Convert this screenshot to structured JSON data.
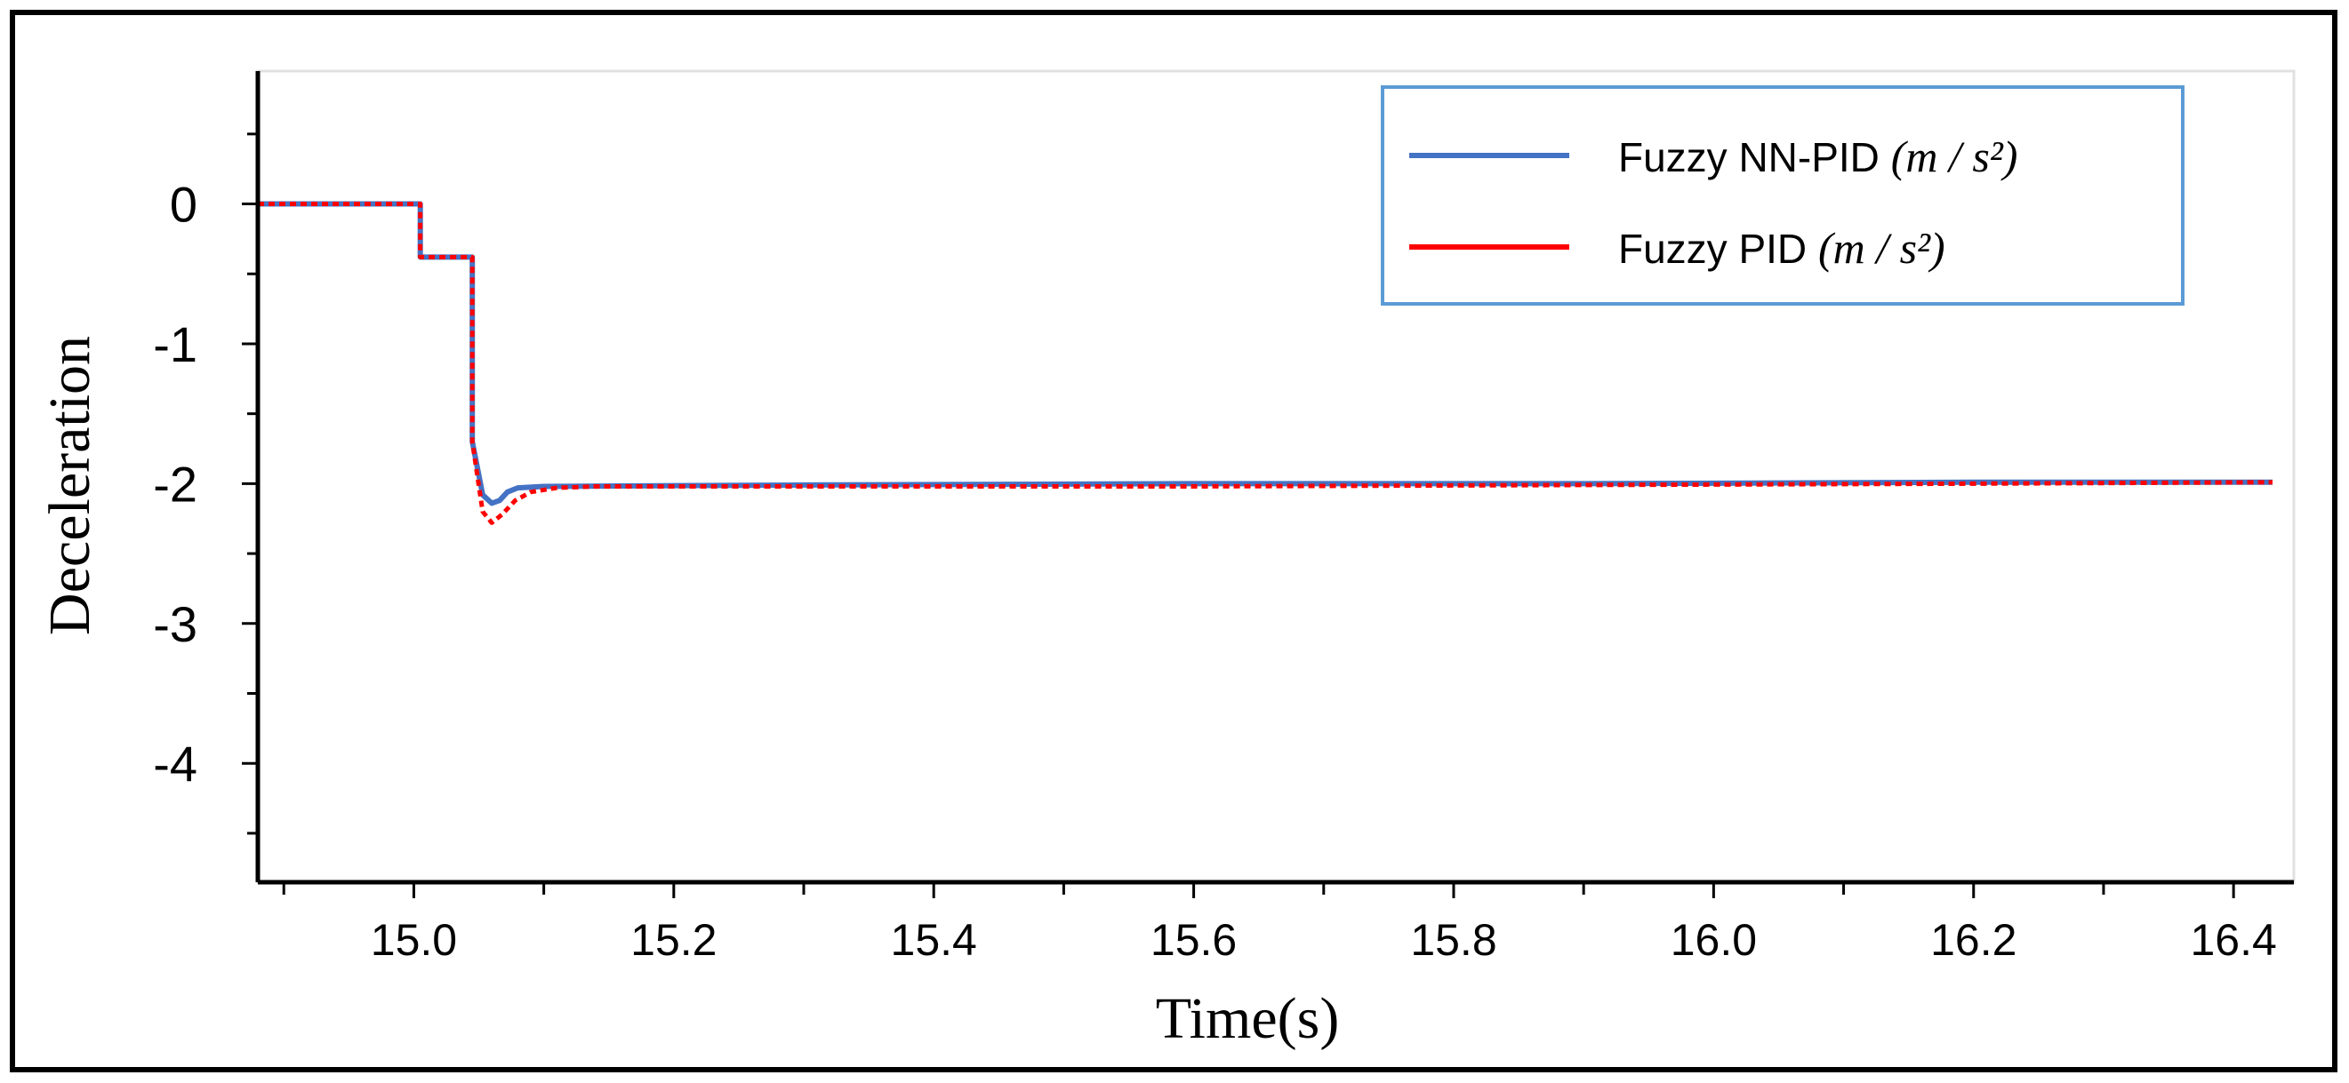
{
  "chart_data": {
    "type": "line",
    "title": "",
    "xlabel": "Time(s)",
    "ylabel": "Deceleration",
    "xlim": [
      14.88,
      16.43
    ],
    "ylim": [
      -4.85,
      0.95
    ],
    "x_ticks": [
      15.0,
      15.2,
      15.4,
      15.6,
      15.8,
      16.0,
      16.2,
      16.4
    ],
    "x_tick_labels": [
      "15.0",
      "15.2",
      "15.4",
      "15.6",
      "15.8",
      "16.0",
      "16.2",
      "16.4"
    ],
    "y_ticks": [
      0,
      -1,
      -2,
      -3,
      -4
    ],
    "y_tick_labels": [
      "0",
      "-1",
      "-2",
      "-3",
      "-4"
    ],
    "grid": false,
    "legend_position": "top-right",
    "series": [
      {
        "name": "Fuzzy NN-PID",
        "unit": "(m / s²)",
        "color": "#4472C4",
        "style": "solid",
        "x": [
          14.88,
          15.005,
          15.005,
          15.045,
          15.045,
          15.053,
          15.06,
          15.066,
          15.072,
          15.08,
          15.1,
          15.3,
          15.6,
          15.9,
          16.2,
          16.43
        ],
        "y": [
          0,
          0,
          -0.38,
          -0.38,
          -1.7,
          -2.08,
          -2.14,
          -2.12,
          -2.06,
          -2.03,
          -2.02,
          -2.01,
          -2.0,
          -2.0,
          -1.99,
          -1.99
        ]
      },
      {
        "name": "Fuzzy PID",
        "unit": "(m / s²)",
        "color": "#FF0000",
        "style": "dotted",
        "x": [
          14.88,
          15.005,
          15.005,
          15.045,
          15.045,
          15.053,
          15.06,
          15.068,
          15.078,
          15.09,
          15.11,
          15.14,
          15.3,
          15.6,
          15.9,
          16.2,
          16.43
        ],
        "y": [
          0,
          0,
          -0.38,
          -0.38,
          -1.7,
          -2.2,
          -2.28,
          -2.22,
          -2.12,
          -2.06,
          -2.03,
          -2.02,
          -2.02,
          -2.02,
          -2.01,
          -2.0,
          -1.99
        ]
      }
    ]
  }
}
